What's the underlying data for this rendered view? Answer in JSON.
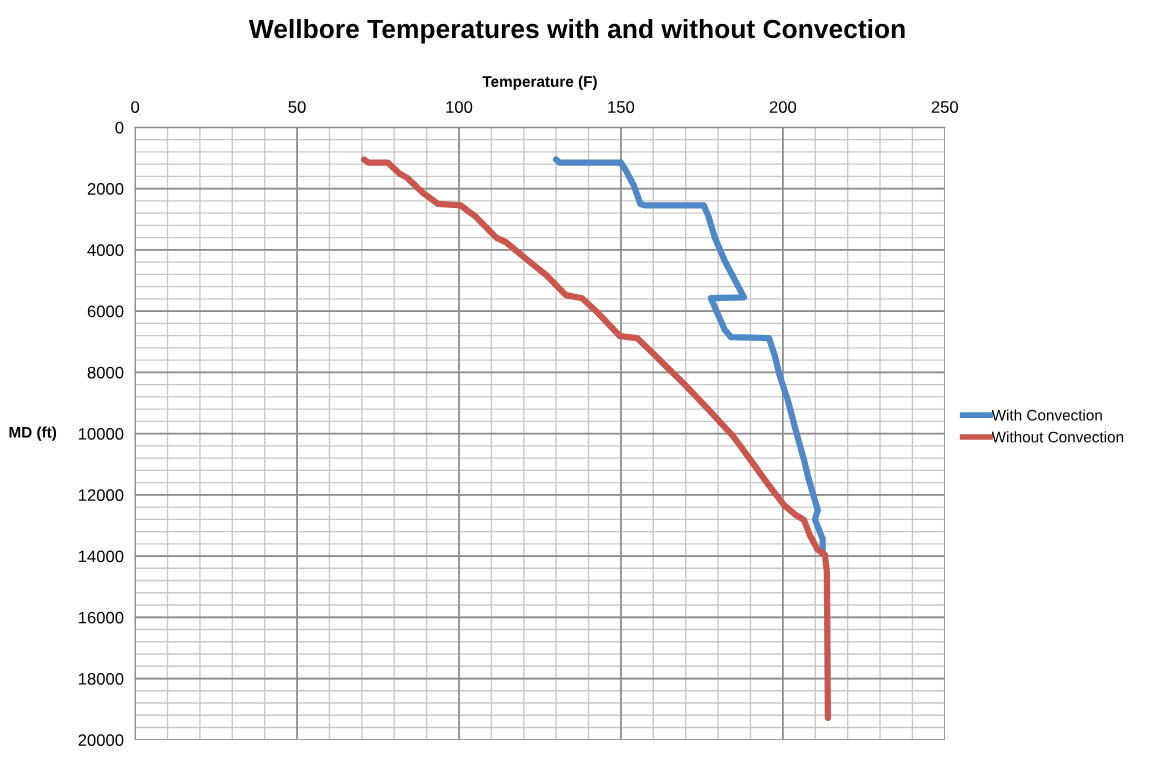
{
  "chart_data": {
    "type": "line",
    "title": "Wellbore Temperatures with and without Convection",
    "xlabel": "Temperature (F)",
    "ylabel": "MD (ft)",
    "xlim": [
      0,
      250
    ],
    "xticks": [
      0,
      50,
      100,
      150,
      200,
      250
    ],
    "ylim": [
      20000,
      0
    ],
    "yticks": [
      0,
      2000,
      4000,
      6000,
      8000,
      10000,
      12000,
      14000,
      16000,
      18000,
      20000
    ],
    "grid": true,
    "legend": "right",
    "marker": "none",
    "line_style": "solid",
    "series": [
      {
        "name": "With Convection",
        "color": "#4f88c6",
        "x": [
          130,
          131,
          150,
          151.5,
          154,
          156,
          157.5,
          175.6,
          177,
          179,
          182,
          186,
          188,
          177.8,
          182,
          184,
          195.7,
          197.5,
          199,
          201.5,
          204,
          206.5,
          208,
          210.8,
          209.9,
          212.3,
          212.3
        ],
        "values": [
          1050,
          1150,
          1150,
          1400,
          1900,
          2500,
          2550,
          2550,
          2900,
          3600,
          4350,
          5150,
          5550,
          5580,
          6600,
          6850,
          6880,
          7450,
          8100,
          8900,
          9900,
          10850,
          11500,
          12500,
          12800,
          13450,
          13830
        ]
      },
      {
        "name": "Without Convection",
        "color": "#c9574d",
        "x": [
          70.7,
          72,
          78,
          81.5,
          84,
          89,
          91,
          93.5,
          100.6,
          103,
          105,
          111.5,
          114.5,
          122.5,
          127,
          133,
          138,
          142.6,
          149.7,
          155,
          160.5,
          163.6,
          169,
          177.5,
          184.6,
          190,
          195.4,
          200.3,
          204,
          206.5,
          208.3,
          210.8,
          213,
          213.6,
          213.9
        ],
        "values": [
          1050,
          1150,
          1150,
          1500,
          1650,
          2150,
          2300,
          2500,
          2550,
          2750,
          2900,
          3600,
          3750,
          4450,
          4830,
          5480,
          5580,
          6030,
          6820,
          6880,
          7440,
          7770,
          8320,
          9270,
          10080,
          10860,
          11650,
          12330,
          12660,
          12820,
          13310,
          13800,
          13960,
          14520,
          19280
        ]
      }
    ]
  }
}
